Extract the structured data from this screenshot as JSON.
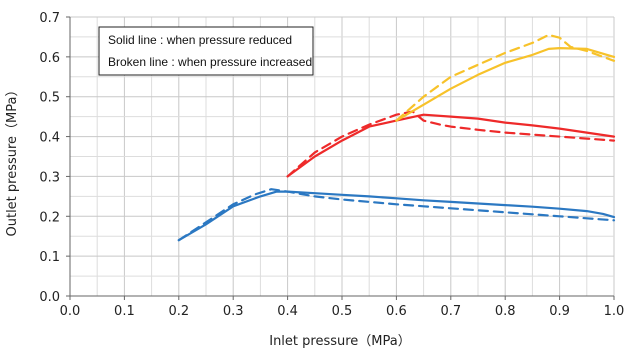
{
  "chart_data": {
    "type": "line",
    "xlabel": "Inlet pressure（MPa）",
    "ylabel": "Outlet pressure（MPa）",
    "xlim": [
      0.0,
      1.0
    ],
    "ylim": [
      0.0,
      0.7
    ],
    "x_ticks": [
      "0.0",
      "0.1",
      "0.2",
      "0.3",
      "0.4",
      "0.5",
      "0.6",
      "0.7",
      "0.8",
      "0.9",
      "1.0"
    ],
    "y_ticks": [
      "0.0",
      "0.1",
      "0.2",
      "0.3",
      "0.4",
      "0.5",
      "0.6",
      "0.7"
    ],
    "grid": true,
    "legend_placement": "top-left",
    "legend": [
      "Solid line : when pressure reduced",
      "Broken line : when pressure increased"
    ],
    "series": [
      {
        "color": "#2b78c2",
        "style": "solid",
        "x": [
          0.2,
          0.25,
          0.3,
          0.35,
          0.38,
          0.4,
          0.45,
          0.5,
          0.55,
          0.6,
          0.65,
          0.7,
          0.75,
          0.8,
          0.85,
          0.9,
          0.95,
          0.98,
          1.0
        ],
        "y": [
          0.14,
          0.18,
          0.225,
          0.25,
          0.262,
          0.262,
          0.258,
          0.254,
          0.25,
          0.245,
          0.24,
          0.236,
          0.232,
          0.228,
          0.224,
          0.219,
          0.213,
          0.206,
          0.198
        ]
      },
      {
        "color": "#2b78c2",
        "style": "dashed",
        "x": [
          0.2,
          0.25,
          0.3,
          0.34,
          0.37,
          0.4,
          0.45,
          0.5,
          0.55,
          0.6,
          0.65,
          0.7,
          0.75,
          0.8,
          0.85,
          0.9,
          0.95,
          1.0
        ],
        "y": [
          0.14,
          0.185,
          0.23,
          0.255,
          0.268,
          0.262,
          0.25,
          0.242,
          0.236,
          0.23,
          0.225,
          0.22,
          0.215,
          0.21,
          0.205,
          0.2,
          0.195,
          0.19
        ]
      },
      {
        "color": "#ee2a2a",
        "style": "solid",
        "x": [
          0.4,
          0.45,
          0.5,
          0.55,
          0.6,
          0.65,
          0.7,
          0.75,
          0.8,
          0.85,
          0.9,
          0.95,
          1.0
        ],
        "y": [
          0.3,
          0.35,
          0.39,
          0.425,
          0.44,
          0.455,
          0.45,
          0.445,
          0.435,
          0.428,
          0.42,
          0.41,
          0.4
        ]
      },
      {
        "color": "#ee2a2a",
        "style": "dashed",
        "x": [
          0.4,
          0.45,
          0.5,
          0.55,
          0.6,
          0.63,
          0.65,
          0.68,
          0.7,
          0.75,
          0.8,
          0.85,
          0.9,
          0.95,
          1.0
        ],
        "y": [
          0.3,
          0.36,
          0.4,
          0.43,
          0.455,
          0.463,
          0.44,
          0.43,
          0.425,
          0.417,
          0.41,
          0.405,
          0.4,
          0.395,
          0.39
        ]
      },
      {
        "color": "#f7c22a",
        "style": "solid",
        "x": [
          0.6,
          0.65,
          0.7,
          0.75,
          0.8,
          0.85,
          0.88,
          0.9,
          0.95,
          1.0
        ],
        "y": [
          0.44,
          0.48,
          0.52,
          0.555,
          0.585,
          0.605,
          0.62,
          0.622,
          0.62,
          0.6
        ]
      },
      {
        "color": "#f7c22a",
        "style": "dashed",
        "x": [
          0.6,
          0.65,
          0.7,
          0.75,
          0.8,
          0.85,
          0.88,
          0.9,
          0.92,
          0.95,
          1.0
        ],
        "y": [
          0.44,
          0.5,
          0.55,
          0.58,
          0.61,
          0.635,
          0.655,
          0.648,
          0.625,
          0.615,
          0.59
        ]
      }
    ]
  }
}
